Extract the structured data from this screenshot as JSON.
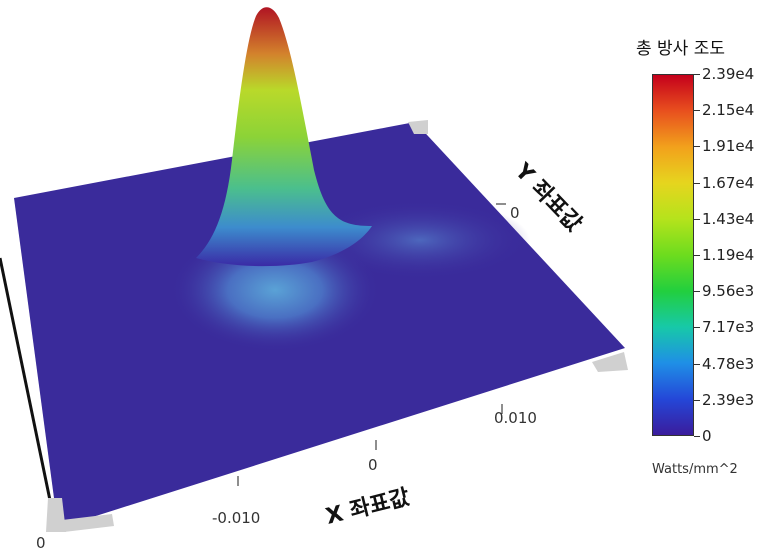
{
  "chart_data": {
    "type": "surface",
    "title": "",
    "xlabel": "X 좌표값",
    "ylabel": "Y 좌표값",
    "x_ticks": [
      "-0.010",
      "0",
      "0.010"
    ],
    "y_ticks": [
      "0"
    ],
    "z_corner_tick": "0",
    "z_max": 23900,
    "peak": {
      "x": -0.003,
      "y": 0.006,
      "value": 23900
    },
    "colorbar": {
      "title": "총 방사 조도",
      "unit": "Watts/mm^2",
      "labels": [
        "2.39e4",
        "2.15e4",
        "1.91e4",
        "1.67e4",
        "1.43e4",
        "1.19e4",
        "9.56e3",
        "7.17e3",
        "4.78e3",
        "2.39e3",
        "0"
      ],
      "colors": [
        "#c4001b",
        "#e8501e",
        "#f2a11c",
        "#e6d51e",
        "#b5e31c",
        "#6ddc1e",
        "#22cf3e",
        "#17c9a8",
        "#1f8fe6",
        "#2447d8",
        "#3a1c9c"
      ]
    }
  }
}
